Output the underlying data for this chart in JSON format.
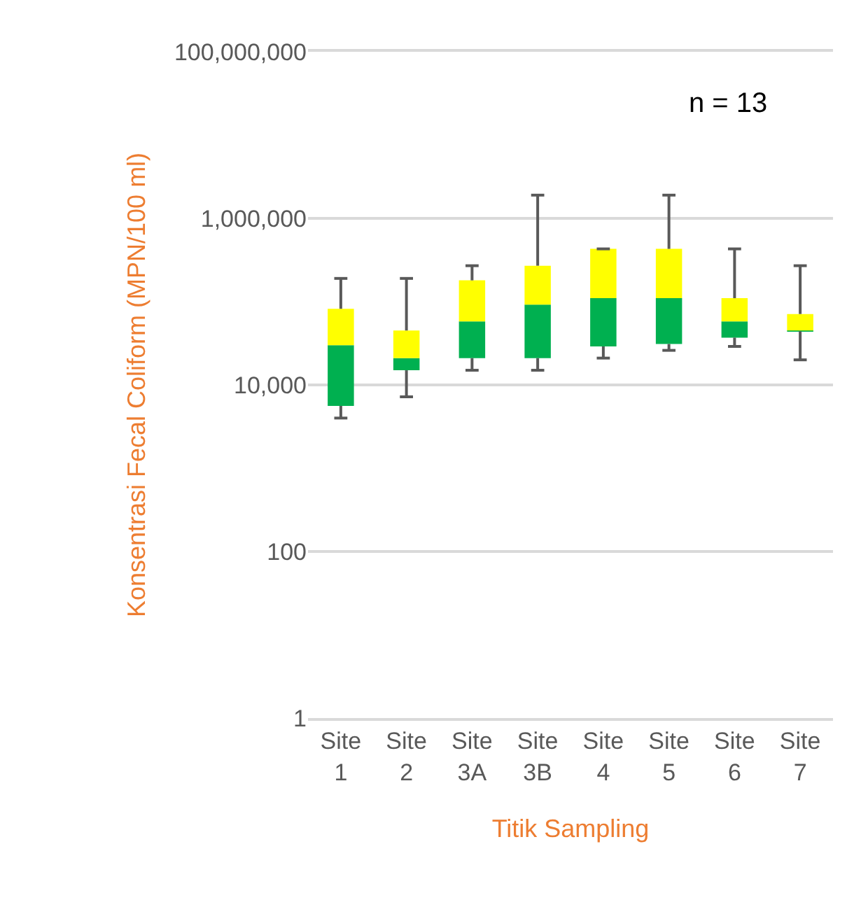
{
  "chart_data": {
    "type": "box",
    "xlabel": "Titik Sampling",
    "ylabel": "Konsentrasi Fecal Coliform (MPN/100 ml)",
    "annotations": [
      "n = 13"
    ],
    "categories": [
      "Site 1",
      "Site 2",
      "Site 3A",
      "Site 3B",
      "Site 4",
      "Site 5",
      "Site 6",
      "Site 7"
    ],
    "colors": [
      [
        "#00b050",
        "#ffff00"
      ],
      [
        "#00b050",
        "#ffff00"
      ],
      [
        "#00b050",
        "#ffff00"
      ],
      [
        "#00b050",
        "#ffff00"
      ],
      [
        "#00b050",
        "#ffff00"
      ],
      [
        "#00b050",
        "#ffff00"
      ],
      [
        "#00b050",
        "#ffff00"
      ],
      [
        "#00b050",
        "#ffff00"
      ]
    ],
    "boxes": [
      {
        "low": 4000,
        "q1": 5600,
        "median": 30000,
        "q3": 82000,
        "high": 190000
      },
      {
        "low": 7200,
        "q1": 15000,
        "median": 21000,
        "q3": 45000,
        "high": 190000
      },
      {
        "low": 15000,
        "q1": 21000,
        "median": 58000,
        "q3": 180000,
        "high": 270000
      },
      {
        "low": 15000,
        "q1": 21000,
        "median": 92000,
        "q3": 270000,
        "high": 1900000
      },
      {
        "low": 21000,
        "q1": 29000,
        "median": 110000,
        "q3": 430000,
        "high": 430000
      },
      {
        "low": 26000,
        "q1": 31000,
        "median": 110000,
        "q3": 430000,
        "high": 1900000
      },
      {
        "low": 29000,
        "q1": 37000,
        "median": 58000,
        "q3": 110000,
        "high": 430000
      },
      {
        "low": 20000,
        "q1": 44000,
        "median": 45000,
        "q3": 71000,
        "high": 270000
      }
    ],
    "log": true,
    "ylim": [
      1,
      100000000
    ],
    "yticks": [
      {
        "value": 1,
        "label": "1"
      },
      {
        "value": 100,
        "label": "100"
      },
      {
        "value": 10000,
        "label": "10,000"
      },
      {
        "value": 1000000,
        "label": "1,000,000"
      },
      {
        "value": 100000000,
        "label": "100,000,000"
      }
    ],
    "grid": "y"
  }
}
